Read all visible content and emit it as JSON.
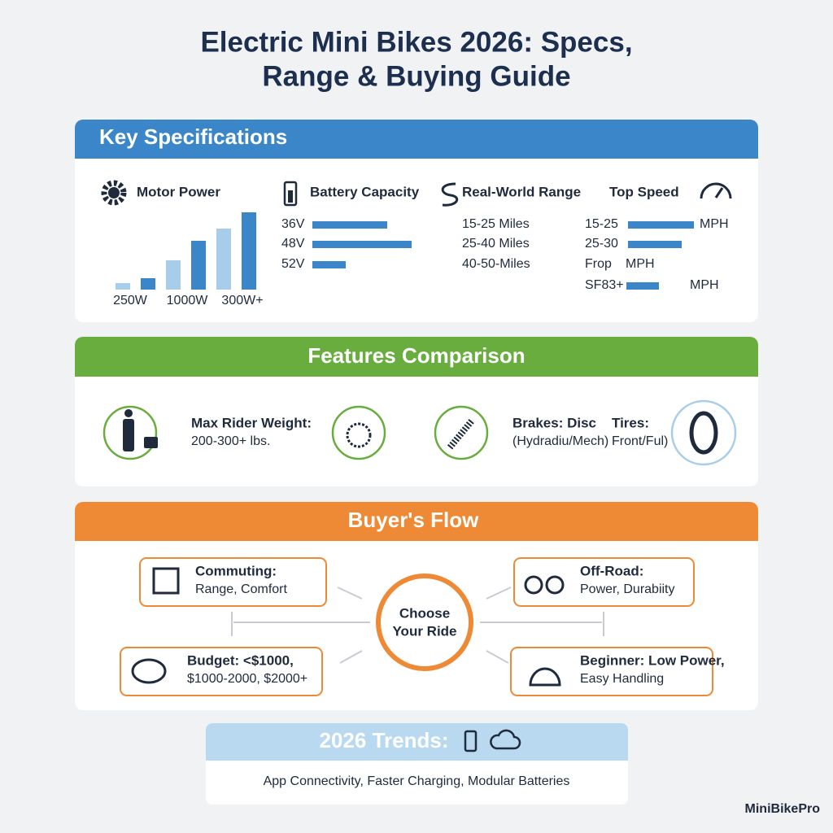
{
  "header": {
    "title_lines": [
      "Electric Mini Bikes 2026: Specs,",
      "Range & Buying Guide"
    ]
  },
  "specs": {
    "title": "Key Specifications",
    "motor": {
      "label": "Motor Power",
      "ticks": [
        "250W",
        "1000W",
        "300W+"
      ]
    },
    "battery": {
      "label": "Battery Capacity",
      "items": [
        "36V",
        "48V",
        "52V"
      ]
    },
    "range": {
      "label": "Real-World Range",
      "items": [
        "15-25 Miles",
        "25-40 Miles",
        "40-50-Miles"
      ]
    },
    "speed": {
      "label": "Top Speed",
      "rows": [
        [
          "15-25",
          "MPH"
        ],
        [
          "25-30"
        ],
        [
          "Frop",
          "MPH"
        ],
        [
          "SF83+",
          "MPH"
        ]
      ]
    }
  },
  "features": {
    "title": "Features Comparison",
    "items": [
      "Max Rider Weight:",
      "200-300+ lbs.",
      "Brakes: Disc",
      "(Hydradiu/Mech)",
      "Tires:",
      "Front/Ful)"
    ]
  },
  "flow": {
    "title": "Buyer's Flow",
    "center": [
      "Choose",
      "Your Ride"
    ],
    "nodes": [
      [
        "Commuting:",
        "Range, Comfort"
      ],
      [
        "Off-Road:",
        "Power, Durabiity"
      ],
      [
        "Budget: <$1000,",
        "$1000-2000, $2000+"
      ],
      [
        "Beginner: Low Power,",
        "Easy Handling"
      ]
    ]
  },
  "trends": {
    "title": "2026 Trends:",
    "text": "App Connectivity, Faster Charging, Modular Batteries"
  },
  "brand": "MiniBikePro"
}
